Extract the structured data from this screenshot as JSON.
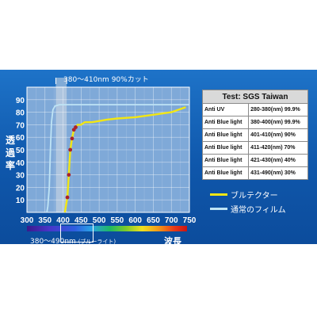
{
  "chart_data": {
    "type": "line",
    "xlabel": "",
    "ylabel": "透過率",
    "xlim": [
      300,
      750
    ],
    "ylim": [
      0,
      100
    ],
    "x_ticks": [
      300,
      350,
      400,
      450,
      500,
      550,
      600,
      650,
      700,
      750
    ],
    "y_ticks": [
      10,
      20,
      30,
      40,
      50,
      60,
      70,
      80,
      90
    ],
    "grid": true,
    "band_highlight": {
      "label": "380～410nm 90%カット",
      "range": [
        380,
        410
      ]
    },
    "series": [
      {
        "name": "ブルテクター",
        "color": "#f2e614",
        "points": [
          [
            405,
            0
          ],
          [
            408,
            5
          ],
          [
            412,
            12
          ],
          [
            416,
            30
          ],
          [
            420,
            50
          ],
          [
            425,
            59
          ],
          [
            430,
            66
          ],
          [
            435,
            68
          ],
          [
            440,
            70
          ],
          [
            450,
            70
          ],
          [
            460,
            72
          ],
          [
            470,
            72
          ],
          [
            480,
            72
          ],
          [
            500,
            73
          ],
          [
            520,
            74
          ],
          [
            550,
            75
          ],
          [
            600,
            76
          ],
          [
            650,
            78
          ],
          [
            700,
            80
          ],
          [
            740,
            84
          ]
        ],
        "markers": [
          [
            412,
            12
          ],
          [
            416,
            30
          ],
          [
            420,
            50
          ],
          [
            425,
            59
          ],
          [
            430,
            66
          ],
          [
            435,
            68
          ]
        ]
      },
      {
        "name": "通常のフィルム",
        "color": "#bfe4f5",
        "points": [
          [
            355,
            0
          ],
          [
            358,
            5
          ],
          [
            362,
            20
          ],
          [
            365,
            50
          ],
          [
            368,
            72
          ],
          [
            372,
            82
          ],
          [
            378,
            85
          ],
          [
            390,
            86
          ],
          [
            450,
            86
          ],
          [
            550,
            86
          ],
          [
            650,
            86
          ],
          [
            750,
            86
          ]
        ]
      }
    ]
  },
  "table": {
    "title": "Test: SGS Taiwan",
    "rows": [
      {
        "label": "Anti UV",
        "value": "280-380(nm) 99.9%"
      },
      {
        "label": "Anti Blue light",
        "value": "380-400(nm) 99.9%"
      },
      {
        "label": "Anti Blue light",
        "value": "401-410(nm) 90%"
      },
      {
        "label": "Anti Blue light",
        "value": "411-420(nm) 70%"
      },
      {
        "label": "Anti Blue light",
        "value": "421-430(nm) 40%"
      },
      {
        "label": "Anti Blue light",
        "value": "431-490(nm) 30%"
      }
    ]
  },
  "legend": {
    "bluetector": "ブルテクター",
    "normal_film": "通常のフィルム"
  },
  "spectrum": {
    "range_label": "380～490nm",
    "range_note": "(ブルーライト)",
    "wave_label": "波長"
  },
  "colors": {
    "background": "#1261b4",
    "bluetector": "#f2e614",
    "normal_film": "#bfe4f5",
    "marker": "#a8222a"
  }
}
